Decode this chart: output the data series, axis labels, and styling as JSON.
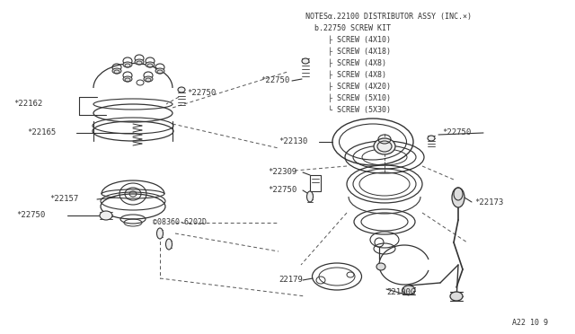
{
  "background_color": "#ffffff",
  "line_color": "#333333",
  "text_color": "#222222",
  "figsize": [
    6.4,
    3.72
  ],
  "dpi": 100,
  "notes_lines": [
    "NOTESα.22100 DISTRIBUTOR ASSY (INC.×)",
    "  b.22750 SCREW KIT",
    "     ├ SCREW (4X10)",
    "     ├ SCREW (4X18)",
    "     ├ SCREW (4X8)",
    "     ├ SCREW (4X8)",
    "     ├ SCREW (4X20)",
    "     ├ SCREW (5X10)",
    "     └ SCREW (5X30)"
  ]
}
